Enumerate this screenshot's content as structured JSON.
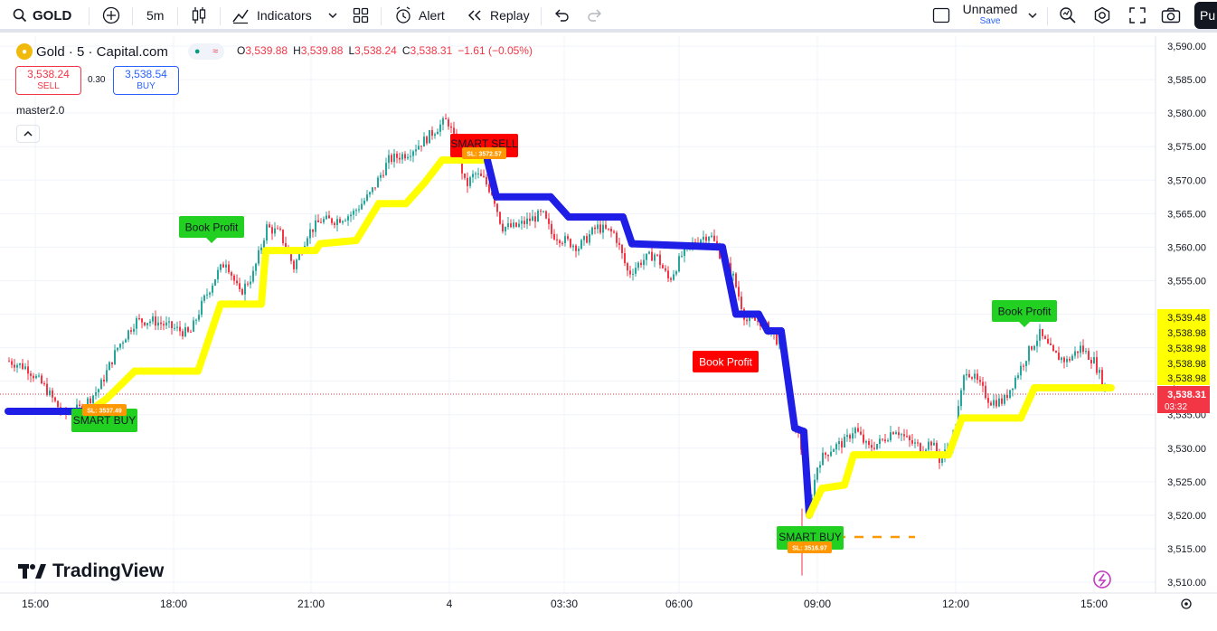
{
  "toolbar": {
    "symbol": "GOLD",
    "interval": "5m",
    "indicators_label": "Indicators",
    "alert_label": "Alert",
    "replay_label": "Replay",
    "layout_name": "Unnamed",
    "layout_save": "Save",
    "publish_label": "Pu"
  },
  "legend": {
    "title": "Gold · 5 · Capital.com",
    "open_label": "O",
    "open": "3,539.88",
    "high_label": "H",
    "high": "3,539.88",
    "low_label": "L",
    "low": "3,538.24",
    "close_label": "C",
    "close": "3,538.31",
    "change": "−1.61 (−0.05%)"
  },
  "trade": {
    "sell_price": "3,538.24",
    "sell_label": "SELL",
    "spread": "0.30",
    "buy_price": "3,538.54",
    "buy_label": "BUY"
  },
  "indicator": {
    "name": "master2.0"
  },
  "signals": {
    "smart_buy_1": "SMART BUY",
    "sl_1": "SL: 3537.49",
    "book_profit_1": "Book Profit",
    "smart_sell": "SMART SELL",
    "sl_2": "SL: 3572.57",
    "book_profit_2": "Book Profit",
    "smart_buy_2": "SMART BUY",
    "sl_3": "SL: 3516.97",
    "book_profit_3": "Book Profit"
  },
  "price_axis": {
    "ticks": [
      "3,590.00",
      "3,585.00",
      "3,580.00",
      "3,575.00",
      "3,570.00",
      "3,565.00",
      "3,560.00",
      "3,555.00",
      "3,550.00",
      "3,545.00",
      "3,540.00",
      "3,535.00",
      "3,530.00",
      "3,525.00",
      "3,520.00",
      "3,515.00",
      "3,510.00"
    ],
    "yellow_labels": [
      "3,539.48",
      "3,538.98",
      "3,538.98",
      "3,538.98",
      "3,538.98"
    ],
    "last_price": "3,538.31",
    "countdown": "03:32"
  },
  "time_axis": {
    "ticks": [
      "15:00",
      "18:00",
      "21:00",
      "4",
      "03:30",
      "06:00",
      "09:00",
      "12:00",
      "15:00"
    ]
  },
  "branding": {
    "logo_text": "TradingView"
  },
  "colors": {
    "up": "#26a69a",
    "down": "#f23645",
    "trend_up": "#ffff00",
    "trend_down": "#1e1ee6",
    "buy_label": "#21d021",
    "sell_label": "#ff0000",
    "sl_label": "#ff9800"
  },
  "chart_data": {
    "type": "candlestick",
    "symbol": "Gold",
    "interval": "5",
    "ylim": [
      3507,
      3592
    ],
    "supertrend": [
      {
        "t": 0,
        "p": 3535.5,
        "dir": "down"
      },
      {
        "t": 90,
        "p": 3535.5,
        "dir": "down"
      },
      {
        "t": 110,
        "p": 3537.5,
        "dir": "up"
      },
      {
        "t": 140,
        "p": 3541.5,
        "dir": "up"
      },
      {
        "t": 210,
        "p": 3541.5,
        "dir": "up"
      },
      {
        "t": 235,
        "p": 3551.5,
        "dir": "up"
      },
      {
        "t": 280,
        "p": 3551.5,
        "dir": "up"
      },
      {
        "t": 285,
        "p": 3559.5,
        "dir": "up"
      },
      {
        "t": 340,
        "p": 3559.5,
        "dir": "up"
      },
      {
        "t": 345,
        "p": 3560.5,
        "dir": "up"
      },
      {
        "t": 385,
        "p": 3561,
        "dir": "up"
      },
      {
        "t": 410,
        "p": 3566.5,
        "dir": "up"
      },
      {
        "t": 440,
        "p": 3566.5,
        "dir": "up"
      },
      {
        "t": 460,
        "p": 3569.5,
        "dir": "up"
      },
      {
        "t": 480,
        "p": 3573,
        "dir": "up"
      },
      {
        "t": 530,
        "p": 3573,
        "dir": "down"
      },
      {
        "t": 540,
        "p": 3567.5,
        "dir": "down"
      },
      {
        "t": 600,
        "p": 3567.5,
        "dir": "down"
      },
      {
        "t": 620,
        "p": 3564.5,
        "dir": "down"
      },
      {
        "t": 680,
        "p": 3564.5,
        "dir": "down"
      },
      {
        "t": 690,
        "p": 3560.5,
        "dir": "down"
      },
      {
        "t": 790,
        "p": 3560,
        "dir": "down"
      },
      {
        "t": 805,
        "p": 3550,
        "dir": "down"
      },
      {
        "t": 830,
        "p": 3550,
        "dir": "down"
      },
      {
        "t": 840,
        "p": 3547.5,
        "dir": "down"
      },
      {
        "t": 855,
        "p": 3547.5,
        "dir": "down"
      },
      {
        "t": 870,
        "p": 3533,
        "dir": "down"
      },
      {
        "t": 880,
        "p": 3532.5,
        "dir": "down"
      },
      {
        "t": 886,
        "p": 3520,
        "dir": "down"
      },
      {
        "t": 900,
        "p": 3524,
        "dir": "up"
      },
      {
        "t": 925,
        "p": 3524.5,
        "dir": "up"
      },
      {
        "t": 935,
        "p": 3529,
        "dir": "up"
      },
      {
        "t": 1040,
        "p": 3529,
        "dir": "up"
      },
      {
        "t": 1055,
        "p": 3534.5,
        "dir": "up"
      },
      {
        "t": 1120,
        "p": 3534.5,
        "dir": "up"
      },
      {
        "t": 1135,
        "p": 3539,
        "dir": "up"
      },
      {
        "t": 1220,
        "p": 3539,
        "dir": "up"
      }
    ]
  }
}
